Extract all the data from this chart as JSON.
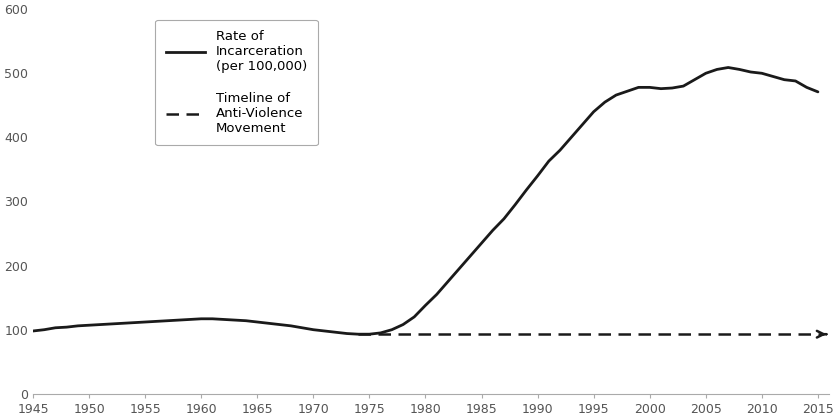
{
  "incarceration_data": {
    "years": [
      1945,
      1946,
      1947,
      1948,
      1949,
      1950,
      1951,
      1952,
      1953,
      1954,
      1955,
      1956,
      1957,
      1958,
      1959,
      1960,
      1961,
      1962,
      1963,
      1964,
      1965,
      1966,
      1967,
      1968,
      1969,
      1970,
      1971,
      1972,
      1973,
      1974,
      1975,
      1976,
      1977,
      1978,
      1979,
      1980,
      1981,
      1982,
      1983,
      1984,
      1985,
      1986,
      1987,
      1988,
      1989,
      1990,
      1991,
      1992,
      1993,
      1994,
      1995,
      1996,
      1997,
      1998,
      1999,
      2000,
      2001,
      2002,
      2003,
      2004,
      2005,
      2006,
      2007,
      2008,
      2009,
      2010,
      2011,
      2012,
      2013,
      2014,
      2015
    ],
    "values": [
      98,
      100,
      103,
      104,
      106,
      107,
      108,
      109,
      110,
      111,
      112,
      113,
      114,
      115,
      116,
      117,
      117,
      116,
      115,
      114,
      112,
      110,
      108,
      106,
      103,
      100,
      98,
      96,
      94,
      93,
      93,
      95,
      100,
      108,
      120,
      138,
      155,
      175,
      195,
      215,
      235,
      255,
      273,
      295,
      318,
      340,
      363,
      380,
      400,
      420,
      440,
      455,
      466,
      472,
      478,
      478,
      476,
      477,
      480,
      490,
      500,
      506,
      509,
      506,
      502,
      500,
      495,
      490,
      488,
      478,
      471
    ]
  },
  "anti_violence_start": 1974,
  "anti_violence_end": 2015.5,
  "anti_violence_y": 93,
  "xlim": [
    1945,
    2016
  ],
  "ylim": [
    0,
    600
  ],
  "xticks": [
    1945,
    1950,
    1955,
    1960,
    1965,
    1970,
    1975,
    1980,
    1985,
    1990,
    1995,
    2000,
    2005,
    2010,
    2015
  ],
  "yticks": [
    0,
    100,
    200,
    300,
    400,
    500,
    600
  ],
  "line_color": "#1a1a1a",
  "dashed_color": "#1a1a1a",
  "background_color": "#ffffff",
  "legend_label_solid": "Rate of\nIncarceration\n(per 100,000)",
  "legend_label_dashed": "Timeline of\nAnti-Violence\nMovement"
}
